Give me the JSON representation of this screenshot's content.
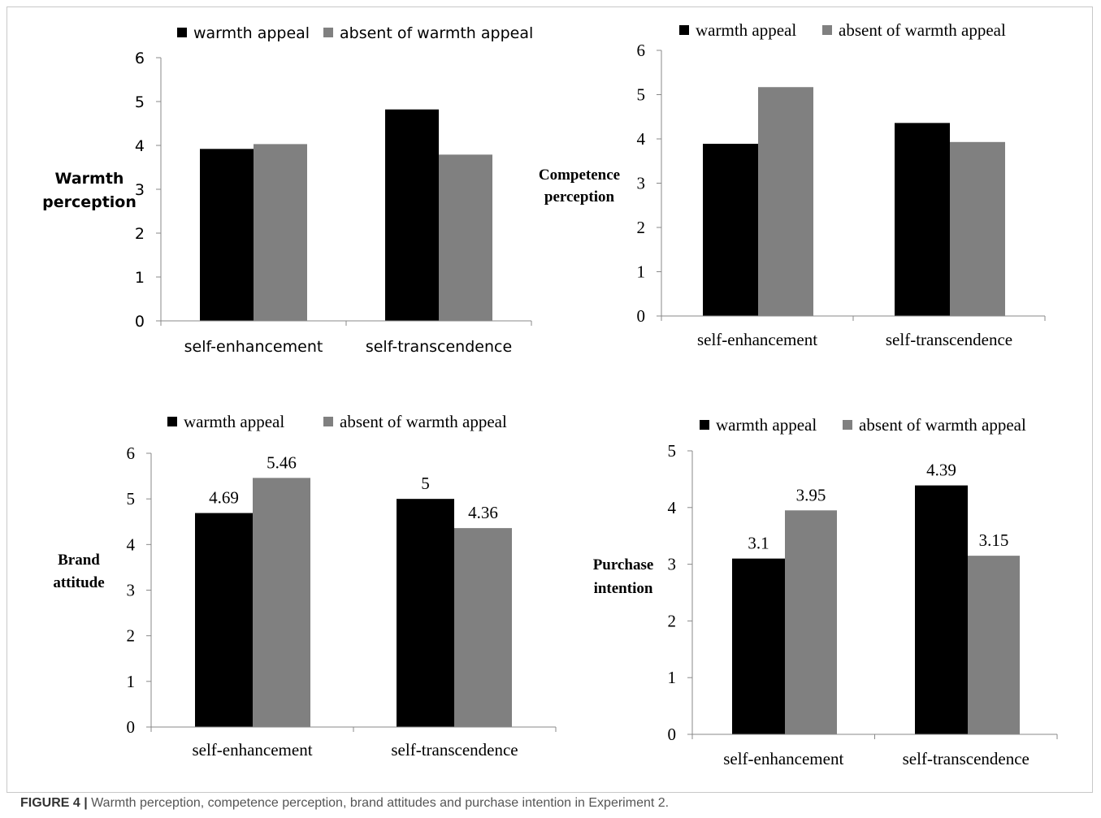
{
  "caption": {
    "label": "FIGURE 4 |",
    "text": " Warmth perception, competence perception, brand attitudes and purchase intention in Experiment 2."
  },
  "colors": {
    "warmth": "#000000",
    "absent": "#808080",
    "axis": "#888888",
    "text": "#000000"
  },
  "chart_data": [
    {
      "type": "bar",
      "categories": [
        "self-enhancement",
        "self-transcendence"
      ],
      "series": [
        {
          "name": "warmth appeal",
          "values": [
            3.92,
            4.82
          ]
        },
        {
          "name": "absent of warmth appeal",
          "values": [
            4.03,
            3.79
          ]
        }
      ],
      "ylabel": "Warmth perception",
      "ylim": [
        0,
        6
      ],
      "yticks": [
        0,
        1,
        2,
        3,
        4,
        5,
        6
      ],
      "data_labels": [],
      "legend": "top",
      "grid": false
    },
    {
      "type": "bar",
      "categories": [
        "self-enhancement",
        "self-transcendence"
      ],
      "series": [
        {
          "name": "warmth appeal",
          "values": [
            3.89,
            4.36
          ]
        },
        {
          "name": "absent of warmth appeal",
          "values": [
            5.17,
            3.93
          ]
        }
      ],
      "ylabel": "Competence perception",
      "ylim": [
        0,
        6
      ],
      "yticks": [
        0,
        1,
        2,
        3,
        4,
        5,
        6
      ],
      "data_labels": [],
      "legend": "top",
      "grid": false
    },
    {
      "type": "bar",
      "categories": [
        "self-enhancement",
        "self-transcendence"
      ],
      "series": [
        {
          "name": "warmth appeal",
          "values": [
            4.69,
            5
          ]
        },
        {
          "name": "absent of warmth appeal",
          "values": [
            5.46,
            4.36
          ]
        }
      ],
      "ylabel": "Brand attitude",
      "ylim": [
        0,
        6
      ],
      "yticks": [
        0,
        1,
        2,
        3,
        4,
        5,
        6
      ],
      "data_labels": [
        [
          "4.69",
          "5"
        ],
        [
          "5.46",
          "4.36"
        ]
      ],
      "legend": "top",
      "grid": false
    },
    {
      "type": "bar",
      "categories": [
        "self-enhancement",
        "self-transcendence"
      ],
      "series": [
        {
          "name": "warmth appeal",
          "values": [
            3.1,
            4.39
          ]
        },
        {
          "name": "absent of warmth appeal",
          "values": [
            3.95,
            3.15
          ]
        }
      ],
      "ylabel": "Purchase intention",
      "ylim": [
        0,
        5
      ],
      "yticks": [
        0,
        1,
        2,
        3,
        4,
        5
      ],
      "data_labels": [
        [
          "3.1",
          "4.39"
        ],
        [
          "3.95",
          "3.15"
        ]
      ],
      "legend": "top",
      "grid": false
    }
  ]
}
